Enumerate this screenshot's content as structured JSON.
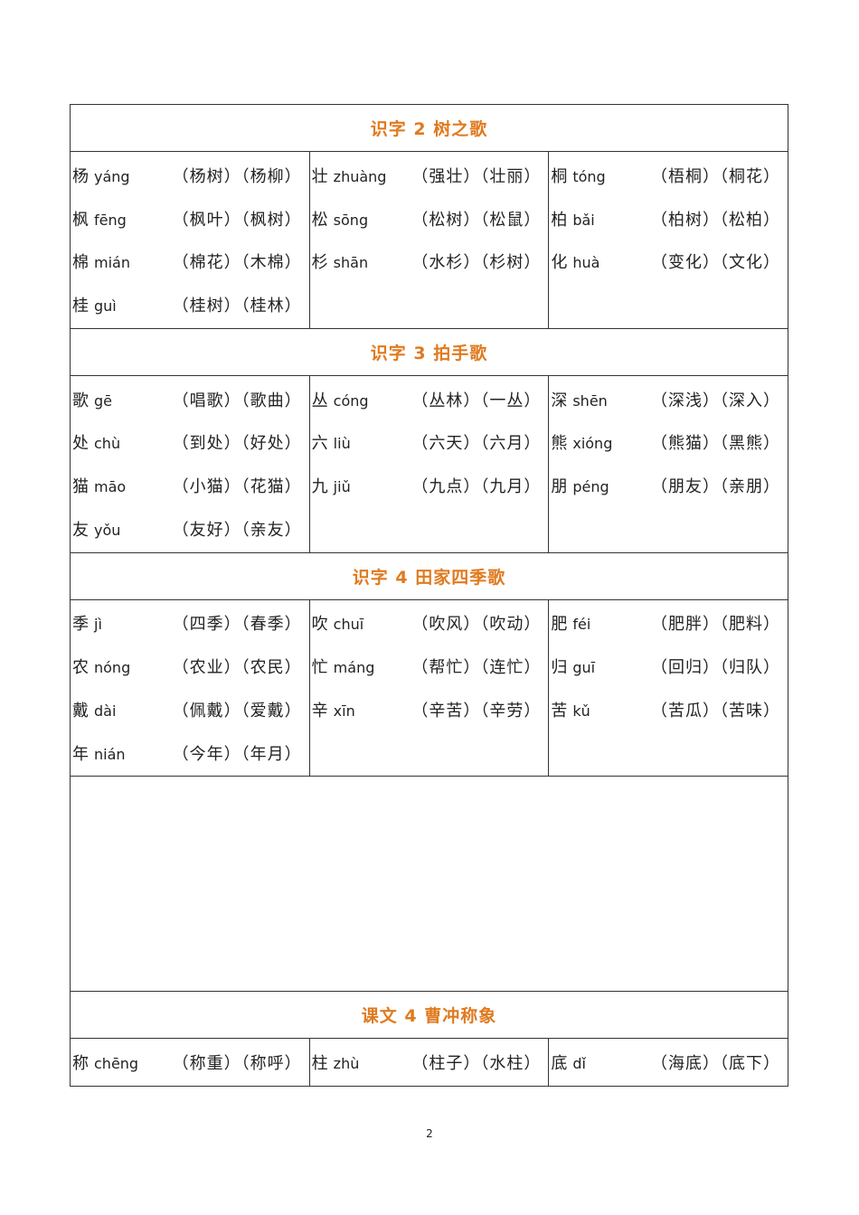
{
  "sections": [
    {
      "title": "识字 2  树之歌",
      "rows": 4,
      "columns": [
        [
          {
            "char": "杨",
            "pinyin": "yáng",
            "words": "（杨树）（杨柳）"
          },
          {
            "char": "枫",
            "pinyin": "fēng",
            "words": "（枫叶）（枫树）"
          },
          {
            "char": "棉",
            "pinyin": "mián",
            "words": "（棉花）（木棉）"
          },
          {
            "char": "桂",
            "pinyin": "guì",
            "words": "（桂树）（桂林）"
          }
        ],
        [
          {
            "char": "壮",
            "pinyin": "zhuàng",
            "words": "（强壮）（壮丽）"
          },
          {
            "char": "松",
            "pinyin": "sōng",
            "words": "（松树）（松鼠）"
          },
          {
            "char": "杉",
            "pinyin": "shān",
            "words": "（水杉）（杉树）"
          }
        ],
        [
          {
            "char": "桐",
            "pinyin": "tóng",
            "words": "（梧桐）（桐花）"
          },
          {
            "char": "柏",
            "pinyin": "bǎi",
            "words": "（柏树）（松柏）"
          },
          {
            "char": "化",
            "pinyin": "huà",
            "words": "（变化）（文化）"
          }
        ]
      ]
    },
    {
      "title": "识字 3  拍手歌",
      "rows": 4,
      "columns": [
        [
          {
            "char": "歌",
            "pinyin": "gē",
            "words": "（唱歌）（歌曲）"
          },
          {
            "char": "处",
            "pinyin": "chù",
            "words": "（到处）（好处）"
          },
          {
            "char": "猫",
            "pinyin": "māo",
            "words": "（小猫）（花猫）"
          },
          {
            "char": "友",
            "pinyin": "yǒu",
            "words": "（友好）（亲友）"
          }
        ],
        [
          {
            "char": "丛",
            "pinyin": "cóng",
            "words": "（丛林）（一丛）"
          },
          {
            "char": "六",
            "pinyin": "liù",
            "words": "（六天）（六月）"
          },
          {
            "char": "九",
            "pinyin": "jiǔ",
            "words": "（九点）（九月）"
          }
        ],
        [
          {
            "char": "深",
            "pinyin": "shēn",
            "words": "（深浅）（深入）"
          },
          {
            "char": "熊",
            "pinyin": "xióng",
            "words": "（熊猫）（黑熊）"
          },
          {
            "char": "朋",
            "pinyin": "péng",
            "words": "（朋友）（亲朋）"
          }
        ]
      ]
    },
    {
      "title": "识字 4  田家四季歌",
      "rows": 4,
      "blank_after": true,
      "columns": [
        [
          {
            "char": "季",
            "pinyin": "jì",
            "words": "（四季）（春季）"
          },
          {
            "char": "农",
            "pinyin": "nóng",
            "words": "（农业）（农民）"
          },
          {
            "char": "戴",
            "pinyin": "dài",
            "words": "（佩戴）（爱戴）"
          },
          {
            "char": "年",
            "pinyin": "nián",
            "words": "（今年）（年月）"
          }
        ],
        [
          {
            "char": "吹",
            "pinyin": "chuī",
            "words": "（吹风）（吹动）"
          },
          {
            "char": "忙",
            "pinyin": "máng",
            "words": "（帮忙）（连忙）"
          },
          {
            "char": "辛",
            "pinyin": "xīn",
            "words": "（辛苦）（辛劳）"
          }
        ],
        [
          {
            "char": "肥",
            "pinyin": "féi",
            "words": "（肥胖）（肥料）"
          },
          {
            "char": "归",
            "pinyin": "guī",
            "words": "（回归）（归队）"
          },
          {
            "char": "苦",
            "pinyin": "kǔ",
            "words": "（苦瓜）（苦味）"
          }
        ]
      ]
    },
    {
      "title": "课文 4  曹冲称象",
      "rows": 1,
      "columns": [
        [
          {
            "char": "称",
            "pinyin": "chēng",
            "words": "（称重）（称呼）"
          }
        ],
        [
          {
            "char": "柱",
            "pinyin": "zhù",
            "words": "（柱子）（水柱）"
          }
        ],
        [
          {
            "char": "底",
            "pinyin": "dǐ",
            "words": "（海底）（底下）"
          }
        ]
      ]
    }
  ],
  "page_number": "2",
  "accent_color": "#E07A1F"
}
